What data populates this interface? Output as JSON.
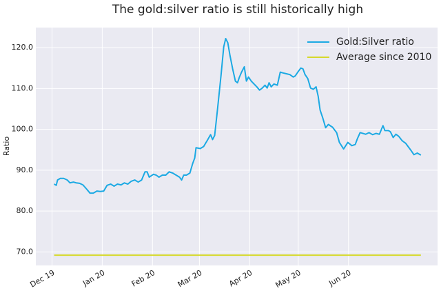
{
  "chart_data": {
    "type": "line",
    "title": "The gold:silver ratio is still historically high",
    "y_label": "Ratio",
    "xlim": [
      -10,
      238
    ],
    "xticks": [
      {
        "value": 0,
        "label": "Dec 19"
      },
      {
        "value": 31,
        "label": "Jan 20"
      },
      {
        "value": 62,
        "label": "Feb 20"
      },
      {
        "value": 91,
        "label": "Mar 20"
      },
      {
        "value": 122,
        "label": "Apr 20"
      },
      {
        "value": 152,
        "label": "May 20"
      },
      {
        "value": 183,
        "label": "Jun 20"
      }
    ],
    "ylim": [
      66.7,
      124.9
    ],
    "yticks": [
      {
        "value": 70,
        "label": "70.0"
      },
      {
        "value": 80,
        "label": "80.0"
      },
      {
        "value": 90,
        "label": "90.0"
      },
      {
        "value": 100,
        "label": "100.0"
      },
      {
        "value": 110,
        "label": "110.0"
      },
      {
        "value": 120,
        "label": "120.0"
      }
    ],
    "grid": true,
    "legend": "upper right",
    "series": [
      {
        "name": "Gold:Silver ratio",
        "color": "#1ba9e3",
        "x": [
          1.3,
          2.6,
          3.4,
          5.1,
          7.2,
          9.4,
          11.1,
          13.2,
          14.9,
          17,
          19.1,
          21.3,
          23.4,
          25.5,
          27.7,
          29.8,
          31.9,
          34,
          36.2,
          38.3,
          40.4,
          42.6,
          44.7,
          46.8,
          48.9,
          51.1,
          53.2,
          55.3,
          57.4,
          58.7,
          60,
          62.6,
          64.3,
          66,
          68.1,
          70.2,
          72.3,
          74.5,
          76.6,
          78.7,
          80,
          81.3,
          83,
          85.1,
          86.8,
          88.1,
          88.9,
          91.5,
          93.6,
          95.7,
          97.9,
          99.1,
          100.4,
          102.1,
          104.3,
          106,
          107.2,
          108.5,
          109.8,
          111.5,
          113.2,
          114.5,
          115.7,
          117,
          118.7,
          120,
          121.3,
          123,
          124.7,
          126.4,
          128.1,
          129.8,
          131.5,
          132.8,
          134,
          135.3,
          137,
          139.1,
          140.9,
          142.6,
          144.7,
          146.8,
          148.9,
          150.2,
          151.9,
          153.6,
          154.9,
          156.2,
          157.9,
          159.6,
          161.3,
          163,
          164.3,
          165.5,
          167.2,
          168.9,
          170.6,
          173.2,
          175.7,
          177.4,
          180,
          182.6,
          185.1,
          187.2,
          188.5,
          190.2,
          193.6,
          195.7,
          197.9,
          200,
          202.1,
          204.3,
          205.5,
          207.7,
          208.9,
          210.6,
          212.3,
          214,
          216.2,
          218.3,
          221.3,
          223.4,
          225.5,
          227.7
        ],
        "values": [
          86.6,
          86.3,
          87.6,
          88,
          88,
          87.6,
          86.9,
          87.1,
          86.9,
          86.8,
          86.4,
          85.4,
          84.4,
          84.4,
          84.9,
          84.8,
          84.9,
          86.3,
          86.6,
          86.1,
          86.6,
          86.4,
          86.9,
          86.6,
          87.3,
          87.6,
          87.1,
          87.6,
          89.6,
          89.6,
          88.3,
          89,
          88.8,
          88.3,
          88.8,
          88.8,
          89.6,
          89.3,
          88.8,
          88.3,
          87.6,
          88.8,
          88.8,
          89.3,
          91.6,
          93,
          95.5,
          95.3,
          95.8,
          97.2,
          98.7,
          97.5,
          98.5,
          104.7,
          113.1,
          120.2,
          122.2,
          121.2,
          118.2,
          114.8,
          111.8,
          111.4,
          112.8,
          114,
          115.3,
          111.8,
          112.8,
          111.8,
          111.1,
          110.4,
          109.6,
          110.1,
          110.8,
          110.1,
          111.4,
          110.4,
          111.1,
          110.8,
          114,
          113.8,
          113.6,
          113.4,
          112.8,
          113.1,
          114.1,
          115,
          114.8,
          113.4,
          112.4,
          110.1,
          109.8,
          110.4,
          108.1,
          104.7,
          102.7,
          100.4,
          101.2,
          100.5,
          99.2,
          96.8,
          95.2,
          96.8,
          96,
          96.3,
          97.7,
          99.2,
          98.8,
          99.2,
          98.7,
          99,
          98.8,
          100.9,
          99.7,
          99.7,
          99.4,
          98,
          98.8,
          98.3,
          97.2,
          96.6,
          95,
          93.8,
          94.2,
          93.7
        ]
      },
      {
        "name": "Average since 2010",
        "color": "#d6d92b",
        "x": [
          1.3,
          227.7
        ],
        "values": [
          69.2,
          69.2
        ]
      }
    ]
  }
}
